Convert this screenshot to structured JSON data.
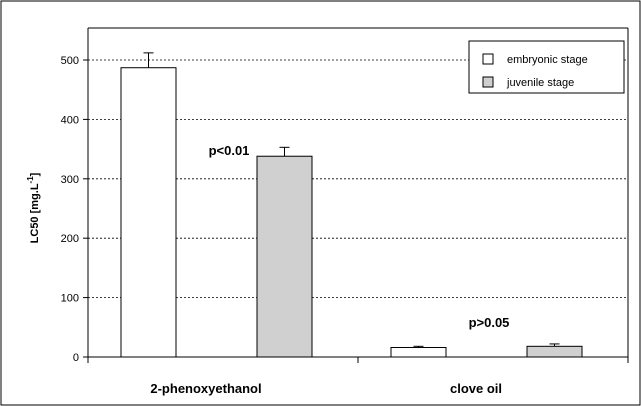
{
  "chart_data": {
    "type": "bar",
    "title": "",
    "ylabel_main": "LC50 [mg.L",
    "ylabel_sup": "-1",
    "ylabel_end": "]",
    "xlabel": "",
    "ylim": [
      0,
      500
    ],
    "yticks": [
      0,
      100,
      200,
      300,
      400,
      500
    ],
    "ytick_labels": [
      "0",
      "100",
      "200",
      "300",
      "400",
      "500"
    ],
    "categories": [
      "2-phenoxyethanol",
      "clove oil"
    ],
    "series": [
      {
        "name": "embryonic stage",
        "color": "#ffffff",
        "values": [
          487,
          16
        ],
        "errors": [
          25,
          2
        ]
      },
      {
        "name": "juvenile stage",
        "color": "#d0d0d0",
        "values": [
          338,
          18
        ],
        "errors": [
          15,
          4
        ]
      }
    ],
    "annotations": [
      {
        "text": "p<0.01",
        "category_index": 0
      },
      {
        "text": "p>0.05",
        "category_index": 1
      }
    ],
    "grid": true,
    "legend_position": "top-right"
  }
}
